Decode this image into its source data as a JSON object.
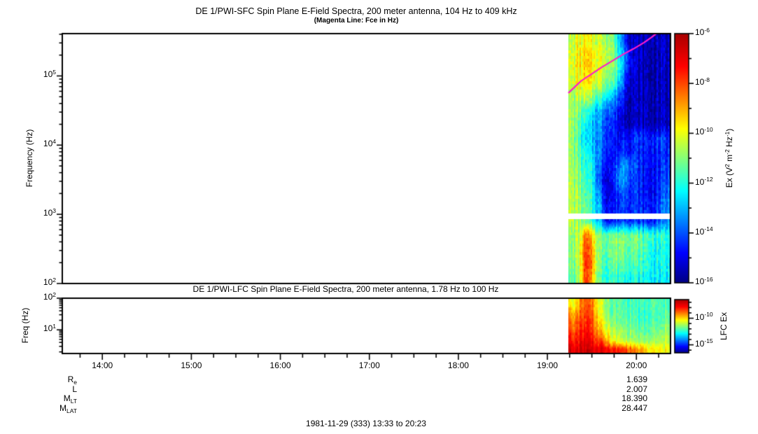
{
  "titles": {
    "sfc_title": "DE 1/PWI-SFC  Spin Plane E-Field Spectra, 200 meter antenna, 104 Hz to 409 kHz",
    "sfc_subtitle": "(Magenta Line: Fce in Hz)",
    "lfc_title": "DE 1/PWI-LFC  Spin Plane E-Field Spectra, 200 meter antenna, 1.78 Hz to 100 Hz",
    "footer": "1981-11-29 (333) 13:33 to 20:23"
  },
  "axes": {
    "x": {
      "start": "13:33",
      "end": "20:23",
      "start_minutes": 813,
      "end_minutes": 1223,
      "hour_ticks": [
        {
          "label": "14:00",
          "minutes": 840
        },
        {
          "label": "15:00",
          "minutes": 900
        },
        {
          "label": "16:00",
          "minutes": 960
        },
        {
          "label": "17:00",
          "minutes": 1020
        },
        {
          "label": "18:00",
          "minutes": 1080
        },
        {
          "label": "19:00",
          "minutes": 1140
        },
        {
          "label": "20:00",
          "minutes": 1200
        }
      ],
      "minor_step_minutes": 15
    },
    "sfc_y": {
      "label": "Frequency (Hz)",
      "scale": "log",
      "log_min": 2.0,
      "log_max": 5.6118,
      "tick_labels": [
        {
          "base": "10",
          "exp": "5",
          "log": 5
        },
        {
          "base": "10",
          "exp": "4",
          "log": 4
        },
        {
          "base": "10",
          "exp": "3",
          "log": 3
        },
        {
          "base": "10",
          "exp": "2",
          "log": 2
        }
      ]
    },
    "lfc_y": {
      "label": "Freq (Hz)",
      "scale": "log",
      "log_min": 0.2504,
      "log_max": 2.0,
      "tick_labels": [
        {
          "base": "10",
          "exp": "2",
          "log": 2
        },
        {
          "base": "10",
          "exp": "1",
          "log": 1
        }
      ]
    }
  },
  "colorbars": {
    "sfc": {
      "log_min": -16,
      "log_max": -6,
      "label_segments": [
        {
          "t": "Ex (V"
        },
        {
          "t": "2",
          "sup": true
        },
        {
          "t": " m"
        },
        {
          "t": "-2",
          "sup": true
        },
        {
          "t": " Hz"
        },
        {
          "t": "-1",
          "sup": true
        },
        {
          "t": ")"
        }
      ],
      "tick_labels": [
        {
          "base": "10",
          "exp": "-6",
          "log": -6
        },
        {
          "base": "10",
          "exp": "-8",
          "log": -8
        },
        {
          "base": "10",
          "exp": "-10",
          "log": -10
        },
        {
          "base": "10",
          "exp": "-12",
          "log": -12
        },
        {
          "base": "10",
          "exp": "-14",
          "log": -14
        },
        {
          "base": "10",
          "exp": "-16",
          "log": -16
        }
      ],
      "minor_logs": [
        -7,
        -9,
        -11,
        -13,
        -15
      ]
    },
    "lfc": {
      "log_min": -16.5,
      "log_max": -6.5,
      "label_segments": [
        {
          "t": "LFC Ex"
        }
      ],
      "tick_labels": [
        {
          "base": "10",
          "exp": "-10",
          "log": -10
        },
        {
          "base": "10",
          "exp": "-15",
          "log": -15
        }
      ],
      "minor_logs": [
        -7,
        -8,
        -9,
        -11,
        -12,
        -13,
        -14,
        -16
      ]
    }
  },
  "annotations": {
    "rows": [
      {
        "main": "R",
        "sub": "e",
        "value": "1.639"
      },
      {
        "main": "L",
        "sub": "",
        "value": "2.007"
      },
      {
        "main": "M",
        "sub": "LT",
        "value": "18.390"
      },
      {
        "main": "M",
        "sub": "LAT",
        "value": "28.447"
      }
    ]
  },
  "colors": {
    "magenta_line": "#ff1dc8",
    "frame": "#000000",
    "background": "#ffffff",
    "colormap": "jet"
  },
  "chart_data": [
    {
      "type": "heatmap",
      "panel": "SFC",
      "instrument": "DE 1/PWI-SFC",
      "quantity": "Spin Plane E-Field Spectra, 200 meter antenna",
      "freq_range_hz": [
        104,
        409000
      ],
      "time_axis_range": [
        "13:33",
        "20:23"
      ],
      "data_time_range": [
        "19:14",
        "20:23"
      ],
      "z_units": "V^2 m^-2 Hz^-1",
      "z_log_range": [
        -16,
        -6
      ],
      "gap_log_hz": [
        2.93,
        3.01
      ],
      "row_log10_hz": [
        5.5,
        5.3,
        5.1,
        4.9,
        4.7,
        4.5,
        4.3,
        4.1,
        3.9,
        3.7,
        3.5,
        3.3,
        3.1,
        2.9,
        2.7,
        2.5,
        2.3,
        2.1
      ],
      "grid_log10_power": [
        [
          -10.5,
          -10.0,
          -10.0,
          -10.2,
          -10.3,
          -10.5,
          -11.0,
          -13.0,
          -14.5,
          -15.5,
          -15.5,
          -15.5,
          -15.5,
          -15.5,
          -15.5
        ],
        [
          -10.2,
          -9.7,
          -9.6,
          -9.8,
          -10.0,
          -10.2,
          -10.8,
          -12.5,
          -13.5,
          -15.3,
          -15.5,
          -15.6,
          -15.5,
          -15.5,
          -15.5
        ],
        [
          -10.3,
          -9.6,
          -9.5,
          -9.7,
          -10.0,
          -10.3,
          -11.0,
          -12.0,
          -14.0,
          -15.2,
          -15.5,
          -15.6,
          -15.6,
          -15.5,
          -15.5
        ],
        [
          -10.5,
          -9.9,
          -9.8,
          -10.0,
          -10.3,
          -10.8,
          -11.5,
          -12.8,
          -14.5,
          -15.3,
          -15.5,
          -15.5,
          -15.6,
          -15.5,
          -15.5
        ],
        [
          -10.8,
          -10.3,
          -10.5,
          -11.0,
          -11.5,
          -12.0,
          -13.0,
          -14.0,
          -15.0,
          -15.4,
          -15.5,
          -15.5,
          -15.5,
          -15.5,
          -15.5
        ],
        [
          -10.8,
          -11.0,
          -12.0,
          -12.5,
          -13.0,
          -13.5,
          -14.0,
          -14.8,
          -15.2,
          -15.4,
          -15.5,
          -15.5,
          -15.5,
          -15.5,
          -15.5
        ],
        [
          -10.8,
          -11.5,
          -12.5,
          -13.0,
          -13.2,
          -14.0,
          -14.5,
          -15.0,
          -15.3,
          -15.4,
          -15.4,
          -15.5,
          -15.5,
          -15.5,
          -15.5
        ],
        [
          -10.8,
          -11.8,
          -12.8,
          -13.0,
          -13.5,
          -14.0,
          -14.5,
          -14.8,
          -14.5,
          -14.3,
          -14.3,
          -14.5,
          -14.5,
          -14.3,
          -14.5
        ],
        [
          -10.8,
          -11.5,
          -12.5,
          -12.8,
          -13.5,
          -14.2,
          -14.8,
          -14.5,
          -14.2,
          -14.5,
          -14.6,
          -14.8,
          -14.5,
          -14.5,
          -14.5
        ],
        [
          -10.7,
          -11.2,
          -12.3,
          -12.5,
          -13.8,
          -14.5,
          -14.8,
          -13.5,
          -13.0,
          -14.0,
          -14.5,
          -14.8,
          -14.8,
          -14.5,
          -14.3
        ],
        [
          -10.6,
          -11.0,
          -12.0,
          -12.3,
          -14.0,
          -15.0,
          -14.8,
          -13.2,
          -13.3,
          -14.2,
          -14.6,
          -14.8,
          -14.8,
          -14.5,
          -14.0
        ],
        [
          -10.5,
          -10.8,
          -11.8,
          -12.2,
          -13.5,
          -14.8,
          -15.0,
          -14.0,
          -13.8,
          -14.3,
          -14.5,
          -14.8,
          -14.8,
          -14.3,
          -13.8
        ],
        [
          -10.5,
          -10.8,
          -11.5,
          -12.0,
          -13.0,
          -14.5,
          -14.8,
          -14.3,
          -14.0,
          -14.3,
          -14.5,
          -14.6,
          -14.5,
          -14.0,
          -13.5
        ],
        [
          null,
          null,
          null,
          null,
          null,
          null,
          null,
          null,
          null,
          null,
          null,
          null,
          null,
          null,
          null
        ],
        [
          -11.0,
          -10.5,
          -8.5,
          -9.5,
          -11.0,
          -11.2,
          -11.0,
          -11.0,
          -11.0,
          -11.2,
          -11.3,
          -11.5,
          -11.8,
          -12.0,
          -12.0
        ],
        [
          -11.0,
          -10.3,
          -8.0,
          -9.0,
          -11.0,
          -11.2,
          -11.0,
          -10.8,
          -11.0,
          -11.2,
          -11.5,
          -11.8,
          -12.0,
          -12.2,
          -12.2
        ],
        [
          -11.2,
          -10.5,
          -7.8,
          -8.8,
          -11.2,
          -11.5,
          -11.3,
          -11.2,
          -11.3,
          -11.5,
          -11.8,
          -12.0,
          -12.2,
          -12.3,
          -12.3
        ],
        [
          -11.5,
          -10.8,
          -8.0,
          -9.2,
          -11.5,
          -11.8,
          -11.8,
          -11.8,
          -11.8,
          -12.0,
          -12.2,
          -12.3,
          -12.3,
          -12.5,
          -12.4
        ]
      ],
      "fce_line": [
        [
          0.832,
          4.753
        ],
        [
          0.8527,
          4.925
        ],
        [
          0.87,
          5.026
        ],
        [
          0.8872,
          5.128
        ],
        [
          0.9045,
          5.219
        ],
        [
          0.9217,
          5.31
        ],
        [
          0.939,
          5.391
        ],
        [
          0.9563,
          5.482
        ],
        [
          0.9678,
          5.553
        ],
        [
          0.977,
          5.614
        ]
      ]
    },
    {
      "type": "heatmap",
      "panel": "LFC",
      "instrument": "DE 1/PWI-LFC",
      "quantity": "Spin Plane E-Field Spectra, 200 meter antenna",
      "freq_range_hz": [
        1.78,
        100
      ],
      "time_axis_range": [
        "13:33",
        "20:23"
      ],
      "data_time_range": [
        "19:14",
        "20:23"
      ],
      "z_units": "V^2 m^-2 Hz^-1",
      "z_log_range": [
        -16.5,
        -6.5
      ],
      "row_log10_hz": [
        1.9,
        1.6,
        1.3,
        1.0,
        0.7,
        0.4
      ],
      "grid_log10_power": [
        [
          -10.5,
          -9.5,
          -8.5,
          -9.0,
          -10.5,
          -11.5,
          -12.0,
          -12.0,
          -12.2,
          -12.0,
          -12.3,
          -12.2,
          -12.0,
          -12.3,
          -12.0
        ],
        [
          -9.5,
          -9.0,
          -8.3,
          -8.8,
          -10.5,
          -11.5,
          -11.8,
          -12.0,
          -12.0,
          -12.0,
          -12.5,
          -12.3,
          -12.2,
          -12.4,
          -11.8
        ],
        [
          -9.0,
          -8.5,
          -8.2,
          -8.5,
          -10.0,
          -11.0,
          -11.5,
          -11.8,
          -11.8,
          -11.8,
          -12.3,
          -12.2,
          -12.0,
          -12.2,
          -11.5
        ],
        [
          -8.5,
          -8.2,
          -7.8,
          -8.2,
          -9.5,
          -10.5,
          -11.0,
          -11.3,
          -11.5,
          -11.5,
          -12.0,
          -12.0,
          -11.8,
          -11.8,
          -11.2
        ],
        [
          -8.0,
          -7.8,
          -7.5,
          -7.8,
          -8.5,
          -9.5,
          -10.5,
          -11.0,
          -11.2,
          -11.2,
          -11.5,
          -11.5,
          -11.3,
          -11.2,
          -10.8
        ],
        [
          -7.3,
          -7.2,
          -7.0,
          -7.2,
          -7.5,
          -7.8,
          -8.0,
          -8.3,
          -8.5,
          -9.0,
          -9.5,
          -10.0,
          -10.2,
          -10.5,
          -10.3
        ]
      ]
    }
  ]
}
